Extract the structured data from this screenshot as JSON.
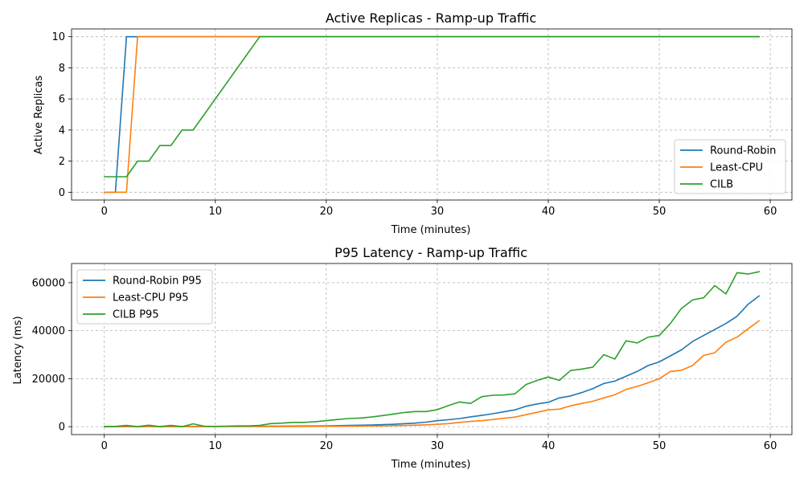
{
  "chart_data": [
    {
      "type": "line",
      "title": "Active Replicas - Ramp-up Traffic",
      "xlabel": "Time (minutes)",
      "ylabel": "Active Replicas",
      "xlim": [
        -2.95,
        61.95
      ],
      "ylim": [
        -0.5,
        10.5
      ],
      "xticks": [
        0,
        10,
        20,
        30,
        40,
        50,
        60
      ],
      "yticks": [
        0,
        2,
        4,
        6,
        8,
        10
      ],
      "grid": true,
      "legend_position": "lower-right",
      "series": [
        {
          "name": "Round-Robin",
          "color": "#1f77b4",
          "x": [
            0,
            1,
            2,
            3,
            59
          ],
          "y": [
            0,
            0,
            10,
            10,
            10
          ]
        },
        {
          "name": "Least-CPU",
          "color": "#ff7f0e",
          "x": [
            0,
            1,
            2,
            3,
            59
          ],
          "y": [
            0,
            0,
            0,
            10,
            10
          ]
        },
        {
          "name": "CILB",
          "color": "#2ca02c",
          "x": [
            0,
            1,
            2,
            3,
            4,
            5,
            6,
            7,
            8,
            9,
            10,
            11,
            12,
            13,
            14,
            59
          ],
          "y": [
            1,
            1,
            1,
            2,
            2,
            3,
            3,
            4,
            4,
            5,
            6,
            7,
            8,
            9,
            10,
            10
          ]
        }
      ]
    },
    {
      "type": "line",
      "title": "P95 Latency - Ramp-up Traffic",
      "xlabel": "Time (minutes)",
      "ylabel": "Latency (ms)",
      "xlim": [
        -2.95,
        61.95
      ],
      "ylim": [
        -3300,
        68000
      ],
      "xticks": [
        0,
        10,
        20,
        30,
        40,
        50,
        60
      ],
      "yticks": [
        0,
        20000,
        40000,
        60000
      ],
      "grid": true,
      "legend_position": "upper-left",
      "series": [
        {
          "name": "Round-Robin P95",
          "color": "#1f77b4",
          "x": [
            0,
            5,
            10,
            14,
            15,
            20,
            22,
            24,
            26,
            28,
            29,
            30,
            31,
            32,
            33,
            34,
            35,
            36,
            37,
            38,
            39,
            40,
            41,
            42,
            43,
            44,
            45,
            46,
            47,
            48,
            49,
            50,
            51,
            52,
            53,
            54,
            55,
            56,
            57,
            58,
            59
          ],
          "y": [
            0,
            50,
            100,
            150,
            200,
            300,
            500,
            700,
            1000,
            1500,
            1900,
            2500,
            2900,
            3400,
            4100,
            4700,
            5400,
            6200,
            7000,
            8500,
            9500,
            10200,
            12000,
            12800,
            14200,
            15800,
            18000,
            19000,
            21000,
            23000,
            25500,
            27000,
            29500,
            32000,
            35500,
            38000,
            40500,
            43000,
            46000,
            51000,
            54500
          ]
        },
        {
          "name": "Least-CPU P95",
          "color": "#ff7f0e",
          "x": [
            0,
            5,
            10,
            15,
            20,
            25,
            28,
            29,
            30,
            31,
            32,
            33,
            34,
            35,
            36,
            37,
            38,
            39,
            40,
            41,
            42,
            43,
            44,
            45,
            46,
            47,
            48,
            49,
            50,
            51,
            52,
            53,
            54,
            55,
            56,
            57,
            58,
            59
          ],
          "y": [
            0,
            0,
            50,
            80,
            150,
            300,
            600,
            800,
            1000,
            1300,
            1800,
            2200,
            2500,
            3000,
            3500,
            4000,
            5000,
            6000,
            7000,
            7300,
            8700,
            9700,
            10600,
            12000,
            13300,
            15500,
            16800,
            18300,
            20000,
            23000,
            23500,
            25500,
            29700,
            30800,
            35200,
            37300,
            40800,
            44200
          ]
        },
        {
          "name": "CILB P95",
          "color": "#2ca02c",
          "x": [
            0,
            1,
            2,
            3,
            4,
            5,
            6,
            7,
            8,
            9,
            10,
            11,
            12,
            13,
            14,
            15,
            16,
            17,
            18,
            19,
            20,
            21,
            22,
            23,
            24,
            25,
            26,
            27,
            28,
            29,
            30,
            31,
            32,
            33,
            34,
            35,
            36,
            37,
            38,
            39,
            40,
            41,
            42,
            43,
            44,
            45,
            46,
            47,
            48,
            49,
            50,
            51,
            52,
            53,
            54,
            55,
            56,
            57,
            58,
            59
          ],
          "y": [
            0,
            100,
            500,
            0,
            600,
            0,
            500,
            0,
            1200,
            200,
            100,
            200,
            300,
            300,
            500,
            1300,
            1500,
            1800,
            1800,
            2100,
            2500,
            3000,
            3400,
            3600,
            4000,
            4600,
            5200,
            5900,
            6300,
            6300,
            7100,
            8800,
            10300,
            9700,
            12500,
            13100,
            13200,
            13700,
            17600,
            19300,
            20700,
            19300,
            23400,
            24000,
            24800,
            30000,
            28200,
            35800,
            34900,
            37300,
            38000,
            43000,
            49300,
            52800,
            53700,
            58800,
            55300,
            64200,
            63600,
            64600
          ]
        }
      ]
    }
  ]
}
